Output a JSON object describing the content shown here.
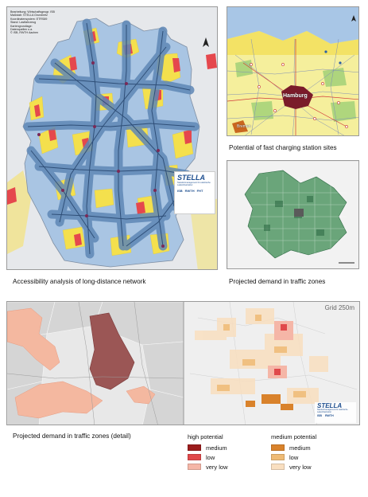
{
  "panels": {
    "germany": {
      "caption": "Accessibility analysis of long-distance network",
      "meta_lines": [
        "Bearbeitung: Wirtschaftsgeogr. ISB",
        "Maßstab: STELLA Grundnetz",
        "Koordinatensystem: ETRS89",
        "Stand: Lastfahrzeug",
        "",
        "Kartengrundlage:",
        "Datenquellen u.a.",
        "© ISB, RWTH Aachen"
      ],
      "logo_text": "STELLA",
      "logo_sub": "Standortmanagement für elektrische Ladeinfrastruktur",
      "partner_labels": [
        "ISB",
        "RWTH",
        "FHT"
      ]
    },
    "hamburg": {
      "caption": "Potential of fast charging station sites",
      "city_labels": [
        "Hamburg",
        "Bremen"
      ]
    },
    "zones": {
      "caption": "Projected demand in traffic zones"
    },
    "detail": {
      "caption": "Projected demand in traffic zones (detail)",
      "grid_label": "Grid 250m",
      "logo_text": "STELLA",
      "logo_sub": "Standortmanagement für elektrische Ladeinfrastruktur",
      "partner_labels": [
        "ISB",
        "RWTH"
      ]
    }
  },
  "legend": {
    "high": {
      "title": "high potential",
      "items": [
        {
          "label": "medium",
          "color": "#9b1c1c"
        },
        {
          "label": "low",
          "color": "#e0494b"
        },
        {
          "label": "very low",
          "color": "#f5b6a7"
        }
      ]
    },
    "medium": {
      "title": "medium potential",
      "items": [
        {
          "label": "medium",
          "color": "#d9822b"
        },
        {
          "label": "low",
          "color": "#efbb76"
        },
        {
          "label": "very low",
          "color": "#f9dfc0"
        }
      ]
    }
  },
  "colors": {
    "corridor_blue": "#5f87b6",
    "region_blue": "#a8c4e0",
    "yellow": "#f4e04d",
    "red": "#e5484d",
    "green_zone": "#2f8a4a",
    "salmon": "#f2a07f",
    "dark_red": "#8d3a3a"
  }
}
